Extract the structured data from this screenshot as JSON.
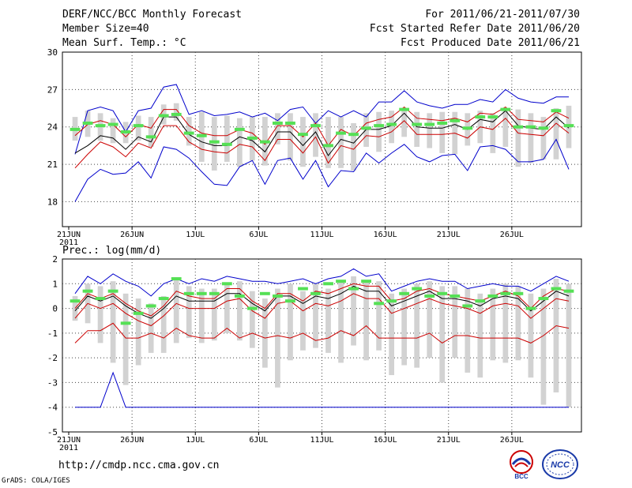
{
  "header": {
    "title": "DERF/NCC/BCC Monthly Forecast",
    "member_size": "Member Size=40",
    "variable": "Mean Surf. Temp.: °C",
    "period": "For 2011/06/21-2011/07/30",
    "start": "Fcst Started Refer Date 2011/06/20",
    "produced": "Fcst Produced Date 2011/06/21"
  },
  "footer": {
    "url": "http://cmdp.ncc.cma.gov.cn",
    "grads": "GrADS: COLA/IGES",
    "logo1": "BCC",
    "logo2": "NCC"
  },
  "colors": {
    "mean": "#000000",
    "envelope": "#0000cc",
    "spread": "#cc0000",
    "bar": "#d2d2d2",
    "marker": "#55e055"
  },
  "chart_data": [
    {
      "type": "line",
      "title": "Mean Surf. Temp.: °C",
      "ylim": [
        16,
        30
      ],
      "yticks": [
        18,
        21,
        24,
        27,
        30
      ],
      "xtick_labels": [
        "21JUN\n2011",
        "26JUN",
        "1JUL",
        "6JUL",
        "11JUL",
        "16JUL",
        "21JUL",
        "26JUL"
      ],
      "days": 40,
      "series": [
        {
          "name": "max",
          "values": [
            21.8,
            25.3,
            25.6,
            25.3,
            23.6,
            25.3,
            25.5,
            27.2,
            27.4,
            25.0,
            25.3,
            24.9,
            25.0,
            25.2,
            24.8,
            25.1,
            24.5,
            25.4,
            25.6,
            24.3,
            25.3,
            24.8,
            25.3,
            24.8,
            26.0,
            26.0,
            26.9,
            26.0,
            25.7,
            25.5,
            25.8,
            25.8,
            26.2,
            26.0,
            27.0,
            26.3,
            26.0,
            25.9,
            26.4,
            26.4
          ]
        },
        {
          "name": "upper",
          "values": [
            23.3,
            24.2,
            24.5,
            24.2,
            23.2,
            24.2,
            23.9,
            25.4,
            25.4,
            24.1,
            23.5,
            23.3,
            23.3,
            23.8,
            23.5,
            22.6,
            24.1,
            24.1,
            23.2,
            24.3,
            22.5,
            23.8,
            23.3,
            24.3,
            24.6,
            24.8,
            25.6,
            24.7,
            24.6,
            24.5,
            24.7,
            24.4,
            25.1,
            25.0,
            25.6,
            24.6,
            24.5,
            24.4,
            25.2,
            24.7
          ]
        },
        {
          "name": "mean",
          "values": [
            21.9,
            22.5,
            23.3,
            23.1,
            22.2,
            23.2,
            22.8,
            24.8,
            24.8,
            23.4,
            22.8,
            22.5,
            22.5,
            23.2,
            22.9,
            22.0,
            23.6,
            23.6,
            22.5,
            23.6,
            21.7,
            23.0,
            22.7,
            23.8,
            23.8,
            24.1,
            25.1,
            24.0,
            23.9,
            23.9,
            24.2,
            23.8,
            24.6,
            24.4,
            25.3,
            24.1,
            23.9,
            23.8,
            24.8,
            23.9
          ]
        },
        {
          "name": "lower",
          "values": [
            20.7,
            21.8,
            22.8,
            22.4,
            21.6,
            22.7,
            22.3,
            24.1,
            24.1,
            22.8,
            22.2,
            22.0,
            21.9,
            22.6,
            22.4,
            21.3,
            23.0,
            23.0,
            21.9,
            23.2,
            21.1,
            22.5,
            22.2,
            23.3,
            23.2,
            23.6,
            24.5,
            23.4,
            23.4,
            23.4,
            23.5,
            23.1,
            24.0,
            23.8,
            24.7,
            23.5,
            23.4,
            23.3,
            24.3,
            23.5
          ]
        },
        {
          "name": "min",
          "values": [
            18.0,
            19.8,
            20.6,
            20.2,
            20.3,
            21.2,
            19.9,
            22.4,
            22.2,
            21.5,
            20.4,
            19.4,
            19.3,
            20.8,
            21.3,
            19.4,
            21.3,
            21.5,
            19.8,
            21.3,
            19.2,
            20.5,
            20.4,
            21.9,
            21.1,
            21.9,
            22.6,
            21.6,
            21.2,
            21.7,
            21.8,
            20.5,
            22.4,
            22.5,
            22.2,
            21.2,
            21.2,
            21.4,
            23.0,
            20.6
          ]
        }
      ],
      "bars": {
        "low": [
          22.9,
          23.2,
          22.9,
          22.7,
          22.7,
          22.9,
          22.4,
          24.2,
          24.5,
          22.5,
          21.2,
          20.5,
          21.2,
          20.8,
          21.3,
          20.9,
          22.6,
          21.3,
          20.8,
          21.6,
          20.7,
          20.7,
          20.5,
          22.4,
          22.0,
          22.7,
          23.2,
          22.4,
          22.3,
          21.9,
          21.8,
          22.5,
          22.7,
          21.9,
          22.4,
          20.8,
          21.1,
          21.4,
          21.4,
          22.3
        ],
        "high": [
          24.8,
          25.3,
          25.1,
          24.7,
          24.4,
          24.9,
          24.8,
          25.8,
          25.9,
          24.8,
          25.2,
          24.8,
          24.9,
          24.7,
          24.8,
          24.8,
          25.1,
          25.1,
          24.8,
          25.1,
          24.8,
          24.8,
          24.3,
          25.1,
          25.2,
          25.3,
          25.4,
          25.2,
          25.1,
          25.2,
          25.2,
          25.1,
          25.3,
          25.1,
          25.5,
          25.4,
          25.1,
          24.8,
          25.5,
          25.7
        ]
      },
      "markers": [
        23.8,
        24.3,
        24.1,
        24.2,
        23.6,
        24.1,
        23.2,
        24.9,
        25.0,
        23.5,
        23.3,
        22.8,
        22.6,
        23.8,
        23.1,
        22.8,
        24.3,
        24.3,
        23.4,
        24.1,
        22.5,
        23.5,
        23.4,
        23.9,
        24.1,
        24.2,
        25.4,
        24.2,
        24.2,
        24.3,
        24.5,
        23.9,
        24.8,
        24.8,
        25.4,
        24.0,
        24.0,
        23.9,
        25.3,
        24.1
      ]
    },
    {
      "type": "line",
      "title": "Prec.: log(mm/d)",
      "ylim": [
        -5,
        2
      ],
      "yticks": [
        -5,
        -4,
        -3,
        -2,
        -1,
        0,
        1,
        2
      ],
      "xtick_labels": [
        "21JUN\n2011",
        "26JUN",
        "1JUL",
        "6JUL",
        "11JUL",
        "16JUL",
        "21JUL",
        "26JUL"
      ],
      "days": 40,
      "series": [
        {
          "name": "max",
          "values": [
            0.6,
            1.3,
            1.0,
            1.4,
            1.1,
            0.9,
            0.5,
            1.0,
            1.2,
            1.0,
            1.2,
            1.1,
            1.3,
            1.2,
            1.1,
            1.1,
            1.0,
            1.1,
            1.2,
            1.0,
            1.2,
            1.3,
            1.6,
            1.3,
            1.4,
            0.7,
            0.9,
            1.1,
            1.2,
            1.1,
            1.1,
            0.8,
            0.9,
            1.0,
            0.9,
            0.9,
            0.7,
            1.0,
            1.3,
            1.1
          ]
        },
        {
          "name": "upper",
          "values": [
            0.0,
            0.6,
            0.4,
            0.6,
            0.2,
            -0.1,
            -0.3,
            0.1,
            0.7,
            0.5,
            0.4,
            0.4,
            0.8,
            0.8,
            0.3,
            0.0,
            0.6,
            0.6,
            0.3,
            0.7,
            0.6,
            0.8,
            1.0,
            0.9,
            0.9,
            0.3,
            0.4,
            0.7,
            0.8,
            0.6,
            0.5,
            0.4,
            0.3,
            0.5,
            0.7,
            0.5,
            0.0,
            0.5,
            0.8,
            0.7
          ]
        },
        {
          "name": "mean",
          "values": [
            -0.1,
            0.5,
            0.3,
            0.5,
            0.1,
            -0.2,
            -0.4,
            0.0,
            0.5,
            0.3,
            0.3,
            0.3,
            0.6,
            0.6,
            0.2,
            -0.1,
            0.5,
            0.5,
            0.2,
            0.5,
            0.4,
            0.6,
            0.9,
            0.7,
            0.7,
            0.1,
            0.3,
            0.5,
            0.7,
            0.4,
            0.4,
            0.3,
            0.1,
            0.4,
            0.5,
            0.4,
            -0.1,
            0.3,
            0.7,
            0.5
          ]
        },
        {
          "name": "lower",
          "values": [
            -0.4,
            0.2,
            0.0,
            0.2,
            -0.2,
            -0.5,
            -0.7,
            -0.3,
            0.2,
            0.0,
            0.0,
            0.0,
            0.3,
            0.4,
            -0.1,
            -0.4,
            0.2,
            0.3,
            -0.1,
            0.2,
            0.1,
            0.3,
            0.6,
            0.4,
            0.4,
            -0.2,
            0.0,
            0.2,
            0.4,
            0.2,
            0.1,
            0.0,
            -0.2,
            0.1,
            0.2,
            0.1,
            -0.4,
            0.0,
            0.4,
            0.3
          ]
        },
        {
          "name": "min",
          "values": [
            -4.0,
            -4.0,
            -4.0,
            -2.6,
            -4.0,
            -4.0,
            -4.0,
            -4.0,
            -4.0,
            -4.0,
            -4.0,
            -4.0,
            -4.0,
            -4.0,
            -4.0,
            -4.0,
            -4.0,
            -4.0,
            -4.0,
            -4.0,
            -4.0,
            -4.0,
            -4.0,
            -4.0,
            -4.0,
            -4.0,
            -4.0,
            -4.0,
            -4.0,
            -4.0,
            -4.0,
            -4.0,
            -4.0,
            -4.0,
            -4.0,
            -4.0,
            -4.0,
            -4.0,
            -4.0,
            -4.0
          ]
        },
        {
          "name": "lowest",
          "values": [
            -1.4,
            -0.9,
            -0.9,
            -0.6,
            -1.2,
            -1.2,
            -1.0,
            -1.2,
            -0.8,
            -1.1,
            -1.2,
            -1.2,
            -0.8,
            -1.2,
            -1.0,
            -1.2,
            -1.1,
            -1.2,
            -1.0,
            -1.3,
            -1.2,
            -0.9,
            -1.1,
            -0.7,
            -1.2,
            -1.2,
            -1.2,
            -1.2,
            -1.0,
            -1.4,
            -1.1,
            -1.1,
            -1.2,
            -1.2,
            -1.2,
            -1.2,
            -1.4,
            -1.1,
            -0.7,
            -0.8
          ]
        }
      ],
      "bars": {
        "low": [
          -0.5,
          -0.6,
          -1.4,
          -2.2,
          -3.1,
          -2.3,
          -1.8,
          -1.8,
          -1.4,
          -1.2,
          -1.4,
          -1.3,
          -1.0,
          -1.3,
          -1.6,
          -2.4,
          -3.2,
          -2.1,
          -1.7,
          -1.6,
          -1.8,
          -2.2,
          -1.5,
          -2.1,
          -1.7,
          -2.7,
          -2.3,
          -2.4,
          -2.0,
          -3.0,
          -2.0,
          -2.6,
          -2.8,
          -2.1,
          -2.2,
          -2.1,
          -2.8,
          -3.9,
          -3.4,
          -4.0
        ],
        "high": [
          0.5,
          1.0,
          0.9,
          1.1,
          0.6,
          0.4,
          0.2,
          0.5,
          1.2,
          0.9,
          0.8,
          0.8,
          1.0,
          1.1,
          0.7,
          0.4,
          0.8,
          1.0,
          0.7,
          1.0,
          0.8,
          1.1,
          1.3,
          1.1,
          1.1,
          0.6,
          0.8,
          1.0,
          1.1,
          0.9,
          0.9,
          0.8,
          0.6,
          0.8,
          1.0,
          0.9,
          0.6,
          0.8,
          1.2,
          1.0
        ]
      },
      "markers": [
        0.3,
        0.7,
        0.4,
        0.7,
        -0.6,
        -0.2,
        0.1,
        0.4,
        1.2,
        0.6,
        0.6,
        0.6,
        1.0,
        0.5,
        0.0,
        0.6,
        0.5,
        0.3,
        0.8,
        0.6,
        1.0,
        1.1,
        0.8,
        1.1,
        0.2,
        0.3,
        0.6,
        0.8,
        0.5,
        0.6,
        0.5,
        0.1,
        0.3,
        0.5,
        0.6,
        0.6,
        0.0,
        0.4,
        0.8,
        0.7
      ]
    }
  ]
}
